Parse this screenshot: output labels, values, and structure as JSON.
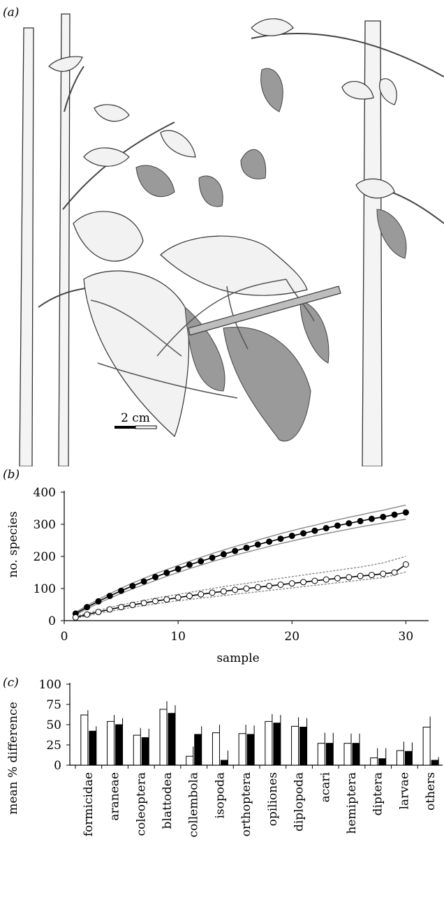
{
  "panels": {
    "a": "(a)",
    "b": "(b)",
    "c": "(c)"
  },
  "illustration": {
    "scale_bar_label": "2 cm",
    "leaf_color": "#e9e9e9",
    "dead_leaf_color": "#9a9a9a"
  },
  "chart_data": [
    {
      "type": "line",
      "title": "",
      "xlabel": "sample",
      "ylabel": "no. species",
      "xlim": [
        0,
        32
      ],
      "ylim": [
        0,
        400
      ],
      "xticks": [
        0,
        10,
        20,
        30
      ],
      "yticks": [
        0,
        100,
        200,
        300,
        400
      ],
      "grid": false,
      "x": [
        1,
        2,
        3,
        4,
        5,
        6,
        7,
        8,
        9,
        10,
        11,
        12,
        13,
        14,
        15,
        16,
        17,
        18,
        19,
        20,
        21,
        22,
        23,
        24,
        25,
        26,
        27,
        28,
        29,
        30
      ],
      "series": [
        {
          "marker": "filled",
          "color": "#000000",
          "values": [
            22,
            42,
            60,
            77,
            93,
            108,
            122,
            136,
            149,
            161,
            174,
            185,
            196,
            207,
            217,
            227,
            237,
            246,
            255,
            264,
            272,
            280,
            288,
            296,
            303,
            310,
            317,
            323,
            330,
            337
          ],
          "ci_upper": [
            26,
            47,
            66,
            84,
            101,
            117,
            132,
            146,
            159,
            172,
            185,
            197,
            209,
            220,
            231,
            241,
            251,
            261,
            271,
            280,
            289,
            297,
            306,
            314,
            322,
            329,
            337,
            344,
            352,
            360
          ],
          "ci_lower": [
            18,
            37,
            54,
            70,
            85,
            99,
            112,
            125,
            138,
            150,
            162,
            173,
            184,
            194,
            204,
            213,
            222,
            231,
            240,
            248,
            256,
            264,
            271,
            278,
            285,
            292,
            298,
            304,
            310,
            316
          ]
        },
        {
          "marker": "open",
          "color": "#000000",
          "values": [
            10,
            19,
            27,
            35,
            42,
            49,
            55,
            61,
            66,
            72,
            77,
            82,
            87,
            91,
            96,
            100,
            104,
            108,
            112,
            116,
            120,
            124,
            128,
            132,
            135,
            139,
            142,
            146,
            150,
            175
          ],
          "ci_upper": [
            13,
            23,
            32,
            41,
            49,
            56,
            63,
            70,
            76,
            82,
            88,
            94,
            100,
            106,
            111,
            116,
            121,
            127,
            132,
            137,
            142,
            147,
            152,
            157,
            162,
            167,
            173,
            180,
            190,
            200
          ],
          "ci_lower": [
            7,
            15,
            22,
            29,
            35,
            42,
            47,
            52,
            57,
            62,
            66,
            70,
            74,
            78,
            82,
            86,
            90,
            94,
            98,
            102,
            106,
            110,
            114,
            118,
            122,
            126,
            130,
            134,
            142,
            152
          ]
        }
      ]
    },
    {
      "type": "bar",
      "title": "",
      "xlabel": "",
      "ylabel": "mean % difference",
      "ylim": [
        0,
        100
      ],
      "yticks": [
        0,
        25,
        50,
        75,
        100
      ],
      "grid": false,
      "categories": [
        "formicidae",
        "araneae",
        "coleoptera",
        "blattodea",
        "collembola",
        "isopoda",
        "orthoptera",
        "opiliones",
        "diplopoda",
        "acari",
        "hemiptera",
        "diptera",
        "larvae",
        "others"
      ],
      "series": [
        {
          "fill": "#ffffff",
          "values": [
            62,
            54,
            37,
            69,
            11,
            40,
            39,
            54,
            48,
            27,
            27,
            9,
            18,
            47
          ],
          "error": [
            6,
            8,
            9,
            10,
            12,
            10,
            11,
            9,
            11,
            13,
            12,
            12,
            11,
            13
          ]
        },
        {
          "fill": "#000000",
          "values": [
            42,
            50,
            34,
            64,
            38,
            6,
            38,
            52,
            47,
            27,
            27,
            8,
            17,
            6
          ],
          "error": [
            6,
            8,
            11,
            10,
            10,
            12,
            11,
            10,
            11,
            13,
            12,
            13,
            11,
            4
          ]
        }
      ]
    }
  ]
}
